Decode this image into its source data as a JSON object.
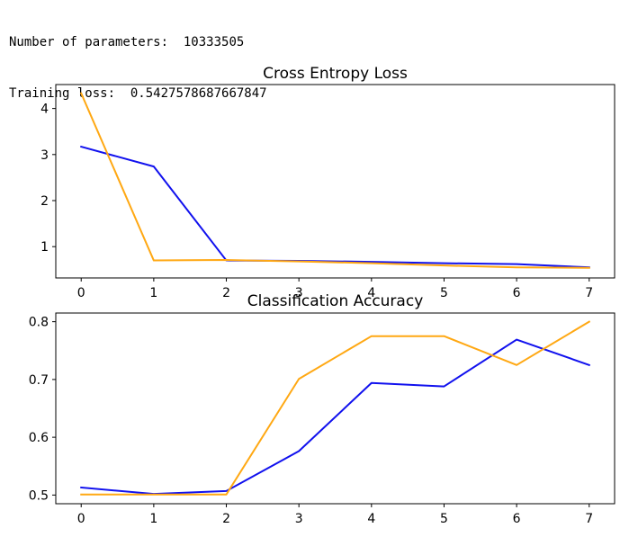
{
  "console": {
    "params_label": "Number of parameters:",
    "params_value": "10333505",
    "loss_label": "Training loss:",
    "loss_value": "0.5427578687667847"
  },
  "colors": {
    "series_a": "#1111ee",
    "series_b": "#ffa813",
    "axis": "#000000"
  },
  "chart_data": [
    {
      "type": "line",
      "title": "Cross Entropy Loss",
      "xlabel": "",
      "ylabel": "",
      "x": [
        0,
        1,
        2,
        3,
        4,
        5,
        6,
        7
      ],
      "xlim": [
        -0.35,
        7.35
      ],
      "ylim": [
        0.32,
        4.52
      ],
      "xticks": [
        0,
        1,
        2,
        3,
        4,
        5,
        6,
        7
      ],
      "yticks": [
        1,
        2,
        3,
        4
      ],
      "series": [
        {
          "name": "blue",
          "color": "#1111ee",
          "values": [
            3.17,
            2.74,
            0.7,
            0.69,
            0.67,
            0.64,
            0.62,
            0.55
          ]
        },
        {
          "name": "orange",
          "color": "#ffa813",
          "values": [
            4.33,
            0.7,
            0.71,
            0.68,
            0.64,
            0.59,
            0.55,
            0.54
          ]
        }
      ]
    },
    {
      "type": "line",
      "title": "Classification Accuracy",
      "xlabel": "",
      "ylabel": "",
      "x": [
        0,
        1,
        2,
        3,
        4,
        5,
        6,
        7
      ],
      "xlim": [
        -0.35,
        7.35
      ],
      "ylim": [
        0.485,
        0.815
      ],
      "xticks": [
        0,
        1,
        2,
        3,
        4,
        5,
        6,
        7
      ],
      "yticks": [
        0.5,
        0.6,
        0.7,
        0.8
      ],
      "series": [
        {
          "name": "blue",
          "color": "#1111ee",
          "values": [
            0.513,
            0.502,
            0.507,
            0.576,
            0.694,
            0.688,
            0.769,
            0.725
          ]
        },
        {
          "name": "orange",
          "color": "#ffa813",
          "values": [
            0.501,
            0.501,
            0.501,
            0.701,
            0.775,
            0.775,
            0.725,
            0.8
          ]
        }
      ]
    }
  ]
}
